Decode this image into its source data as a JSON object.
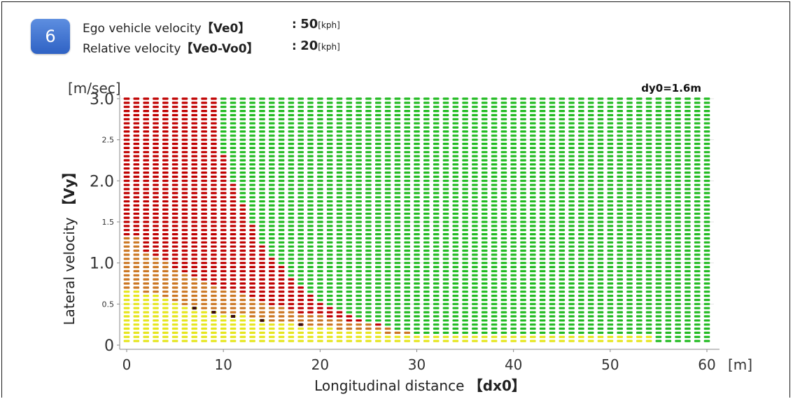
{
  "header": {
    "badge": "6",
    "line1": {
      "label": "Ego vehicle velocity",
      "var": "【Ve0】",
      "colon": ":",
      "value": "50",
      "unit": "[kph]"
    },
    "line2": {
      "label": "Relative velocity",
      "var": "【Ve0-Vo0】",
      "colon": ":",
      "value": "20",
      "unit": "[kph]"
    }
  },
  "colors": {
    "red": "#c00000",
    "green": "#22bb22",
    "orange": "#cc7722",
    "yellow": "#e6e61e",
    "dark": "#3a0a0a"
  },
  "chart_data": {
    "type": "scatter",
    "annotation": "dy0=1.6m",
    "yunit": "[m/sec]",
    "xunit": "[m]",
    "ylabel": "Lateral velocity",
    "ylabel_var": "【Vy】",
    "xlabel": "Longitudinal distance",
    "xlabel_var": "【dx0】",
    "xlim": [
      0,
      60
    ],
    "ylim": [
      0,
      3.0
    ],
    "x_ticks": [
      "0",
      "10",
      "20",
      "30",
      "40",
      "50",
      "60"
    ],
    "y_ticks": [
      {
        "value": 0,
        "label": "0",
        "major": true
      },
      {
        "value": 0.5,
        "label": "0.5",
        "major": false
      },
      {
        "value": 1.0,
        "label": "1.0",
        "major": true
      },
      {
        "value": 1.5,
        "label": "1.5",
        "major": false
      },
      {
        "value": 2.0,
        "label": "2.0",
        "major": true
      },
      {
        "value": 2.5,
        "label": "2.5",
        "major": false
      },
      {
        "value": 3.0,
        "label": "3.0",
        "major": true
      }
    ],
    "grid": "x 1 m (0-60) by y 0.05 m/sec (0.05-3.0)",
    "regions_by_x": [
      {
        "x": 0,
        "red_above": 1.32,
        "orange_above": 0.7
      },
      {
        "x": 1,
        "red_above": 1.32,
        "orange_above": 0.7
      },
      {
        "x": 2,
        "red_above": 1.15,
        "orange_above": 0.65
      },
      {
        "x": 3,
        "red_above": 1.1,
        "orange_above": 0.62
      },
      {
        "x": 4,
        "red_above": 1.02,
        "orange_above": 0.58
      },
      {
        "x": 5,
        "red_above": 0.95,
        "orange_above": 0.55
      },
      {
        "x": 6,
        "red_above": 0.9,
        "orange_above": 0.5
      },
      {
        "x": 7,
        "red_above": 0.85,
        "orange_above": 0.47
      },
      {
        "x": 8,
        "red_above": 0.8,
        "orange_above": 0.45
      },
      {
        "x": 9,
        "red_above": 0.75,
        "orange_above": 0.42
      },
      {
        "x": 10,
        "red_above": 0.7,
        "orange_above": 0.4
      },
      {
        "x": 11,
        "red_above": 0.66,
        "orange_above": 0.38
      },
      {
        "x": 12,
        "red_above": 0.62,
        "orange_above": 0.36
      },
      {
        "x": 13,
        "red_above": 0.58,
        "orange_above": 0.34
      },
      {
        "x": 14,
        "red_above": 0.54,
        "orange_above": 0.32
      },
      {
        "x": 15,
        "red_above": 0.5,
        "orange_above": 0.3
      },
      {
        "x": 16,
        "red_above": 0.46,
        "orange_above": 0.28
      },
      {
        "x": 17,
        "red_above": 0.42,
        "orange_above": 0.26
      },
      {
        "x": 18,
        "red_above": 0.4,
        "orange_above": 0.25
      },
      {
        "x": 19,
        "red_above": 0.38,
        "orange_above": 0.24
      },
      {
        "x": 20,
        "red_above": 0.36,
        "orange_above": 0.22
      },
      {
        "x": 21,
        "red_above": 0.34,
        "orange_above": 0.21
      },
      {
        "x": 22,
        "red_above": 0.32,
        "orange_above": 0.2
      },
      {
        "x": 23,
        "red_above": 0.3,
        "orange_above": 0.19
      },
      {
        "x": 24,
        "red_above": 0.28,
        "orange_above": 0.18
      },
      {
        "x": 25,
        "red_above": 0.26,
        "orange_above": 0.17
      },
      {
        "x": 26,
        "red_above": 0.24,
        "orange_above": 0.16
      },
      {
        "x": 27,
        "red_above": 0.22,
        "orange_above": 0.15
      },
      {
        "x": 28,
        "red_above": 0.2,
        "orange_above": 0.14
      },
      {
        "x": 29,
        "red_above": 0.18,
        "orange_above": 0.13
      },
      {
        "x": 30,
        "red_above": 0.16,
        "orange_above": 0.12
      }
    ],
    "red_top_by_x": [
      {
        "x": 9,
        "y": 3.0
      },
      {
        "x": 10,
        "y": 2.32
      },
      {
        "x": 11,
        "y": 1.95
      },
      {
        "x": 12,
        "y": 1.7
      },
      {
        "x": 13,
        "y": 1.45
      },
      {
        "x": 14,
        "y": 1.23
      },
      {
        "x": 15,
        "y": 1.05
      },
      {
        "x": 16,
        "y": 0.95
      },
      {
        "x": 17,
        "y": 0.82
      },
      {
        "x": 18,
        "y": 0.7
      },
      {
        "x": 19,
        "y": 0.6
      },
      {
        "x": 20,
        "y": 0.52
      },
      {
        "x": 21,
        "y": 0.45
      },
      {
        "x": 22,
        "y": 0.4
      },
      {
        "x": 23,
        "y": 0.35
      },
      {
        "x": 24,
        "y": 0.32
      },
      {
        "x": 25,
        "y": 0.28
      },
      {
        "x": 26,
        "y": 0.25
      },
      {
        "x": 27,
        "y": 0.22
      },
      {
        "x": 28,
        "y": 0.18
      },
      {
        "x": 29,
        "y": 0.15
      },
      {
        "x": 30,
        "y": 0.12
      }
    ],
    "yellow_band_max_y": 0.1,
    "yellow_band_x_range": [
      0,
      54
    ],
    "dark_points": [
      {
        "x": 7,
        "y": 0.45
      },
      {
        "x": 9,
        "y": 0.4
      },
      {
        "x": 11,
        "y": 0.35
      },
      {
        "x": 14,
        "y": 0.3
      },
      {
        "x": 18,
        "y": 0.25
      }
    ]
  }
}
